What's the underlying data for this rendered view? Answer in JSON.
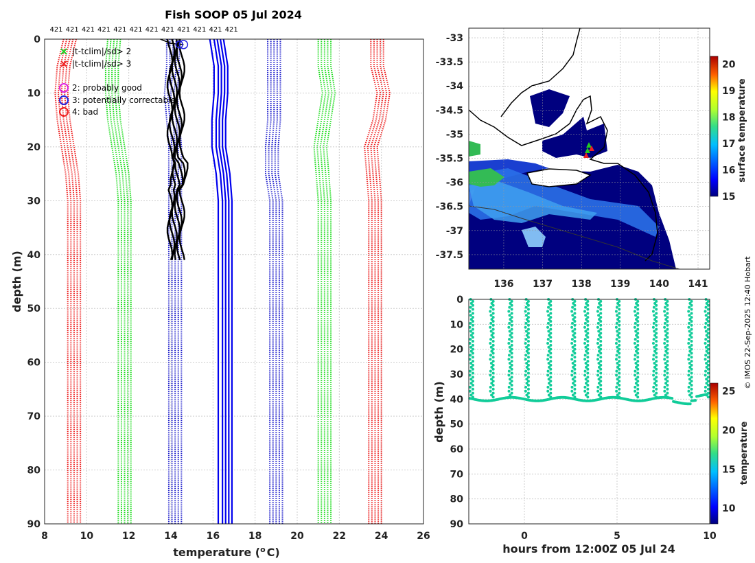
{
  "chart_data": [
    {
      "type": "line",
      "panel": "profiles",
      "title": "Fish SOOP 05 Jul 2024",
      "xlabel": "temperature (",
      "xlabel_sup": "o",
      "xlabel_unit": "C)",
      "ylabel": "depth (m)",
      "xlim": [
        8,
        26
      ],
      "ylim": [
        0,
        90
      ],
      "xticks": [
        8,
        10,
        12,
        14,
        16,
        18,
        20,
        22,
        24,
        26
      ],
      "yticks": [
        0,
        10,
        20,
        30,
        40,
        50,
        60,
        70,
        80,
        90
      ],
      "top_labels": [
        "421",
        "421",
        "421",
        "421",
        "421",
        "421",
        "421",
        "421",
        "421",
        "421",
        "421",
        "421"
      ],
      "legend": [
        {
          "label": "|t-tclim|/sd> 2",
          "marker": "x",
          "color": "#22cc22"
        },
        {
          "label": "|t-tclim|/sd> 3",
          "marker": "x",
          "color": "#ee2222"
        },
        {
          "label": "2: probably good",
          "marker": "o",
          "color": "#dd22dd"
        },
        {
          "label": "3: potentially correctable",
          "marker": "o",
          "color": "#2222dd"
        },
        {
          "label": "4: bad",
          "marker": "o",
          "color": "#ee2222"
        }
      ],
      "climatology_depths": [
        0,
        5,
        10,
        15,
        20,
        25,
        30,
        90
      ],
      "series": [
        {
          "name": "clim -3sd",
          "color": "#ee2222",
          "style": "dotted",
          "values": [
            9.2,
            8.9,
            8.8,
            8.9,
            9.1,
            9.3,
            9.4,
            9.4
          ]
        },
        {
          "name": "clim -2sd",
          "color": "#22dd22",
          "style": "dotted",
          "values": [
            11.3,
            11.2,
            11.2,
            11.3,
            11.5,
            11.7,
            11.8,
            11.8
          ]
        },
        {
          "name": "clim -1sd",
          "color": "#2222cc",
          "style": "dotted",
          "values": [
            14.1,
            14.1,
            14.0,
            14.1,
            14.2,
            14.2,
            14.2,
            14.2
          ]
        },
        {
          "name": "clim mean",
          "color": "#0000ee",
          "style": "solid",
          "values": [
            16.2,
            16.4,
            16.4,
            16.3,
            16.3,
            16.5,
            16.6,
            16.6
          ]
        },
        {
          "name": "clim +1sd",
          "color": "#2222cc",
          "style": "dotted",
          "values": [
            18.9,
            18.9,
            18.9,
            18.9,
            18.8,
            18.8,
            19.0,
            19.0
          ]
        },
        {
          "name": "clim +2sd",
          "color": "#22dd22",
          "style": "dotted",
          "values": [
            21.3,
            21.3,
            21.5,
            21.3,
            21.1,
            21.2,
            21.3,
            21.3
          ]
        },
        {
          "name": "clim +3sd",
          "color": "#ee2222",
          "style": "dotted",
          "values": [
            23.8,
            23.8,
            24.1,
            23.9,
            23.5,
            23.6,
            23.7,
            23.7
          ]
        }
      ],
      "observed": {
        "color": "#000000",
        "depth_range": [
          0,
          41
        ],
        "temperature_range": [
          13.9,
          14.5
        ]
      }
    },
    {
      "type": "heatmap",
      "panel": "map",
      "xlim": [
        135.1,
        141.3
      ],
      "ylim": [
        -37.8,
        -32.8
      ],
      "xticks": [
        136,
        137,
        138,
        139,
        140,
        141
      ],
      "yticks": [
        -33,
        -33.5,
        -34,
        -34.5,
        -35,
        -35.5,
        -36,
        -36.5,
        -37,
        -37.5
      ],
      "ytick_labels": [
        "-33",
        "-33.5",
        "-34",
        "-34.5",
        "-35",
        "-35.5",
        "-36",
        "-36.5",
        "-37",
        "-37.5"
      ],
      "colorbar_label": "surface temperature",
      "colorbar_range": [
        15,
        20.3
      ],
      "colorbar_ticks": [
        15,
        16,
        17,
        18,
        19,
        20
      ],
      "colors": {
        "cold": "#00007f",
        "mid": "#2a9df4",
        "green": "#33bb55",
        "warm": "#cc2200"
      }
    },
    {
      "type": "scatter",
      "panel": "time-depth",
      "xlabel": "hours from 12:00Z 05 Jul 24",
      "ylabel": "depth (m)",
      "xlim": [
        -3,
        10
      ],
      "ylim": [
        0,
        90
      ],
      "xticks": [
        0,
        5,
        10
      ],
      "yticks": [
        0,
        10,
        20,
        30,
        40,
        50,
        60,
        70,
        80,
        90
      ],
      "colorbar_label": "temperature",
      "colorbar_range": [
        8,
        26
      ],
      "colorbar_ticks": [
        10,
        15,
        20,
        25
      ],
      "point_color": "#11cc99",
      "casts_hours": [
        -2.9,
        -1.8,
        -0.8,
        0.1,
        1.3,
        2.6,
        3.3,
        4.0,
        5.0,
        6.0,
        7.0,
        7.6,
        8.9,
        9.8
      ]
    }
  ],
  "watermark": "© IMOS 22-Sep-2025 12:40 Hobart"
}
